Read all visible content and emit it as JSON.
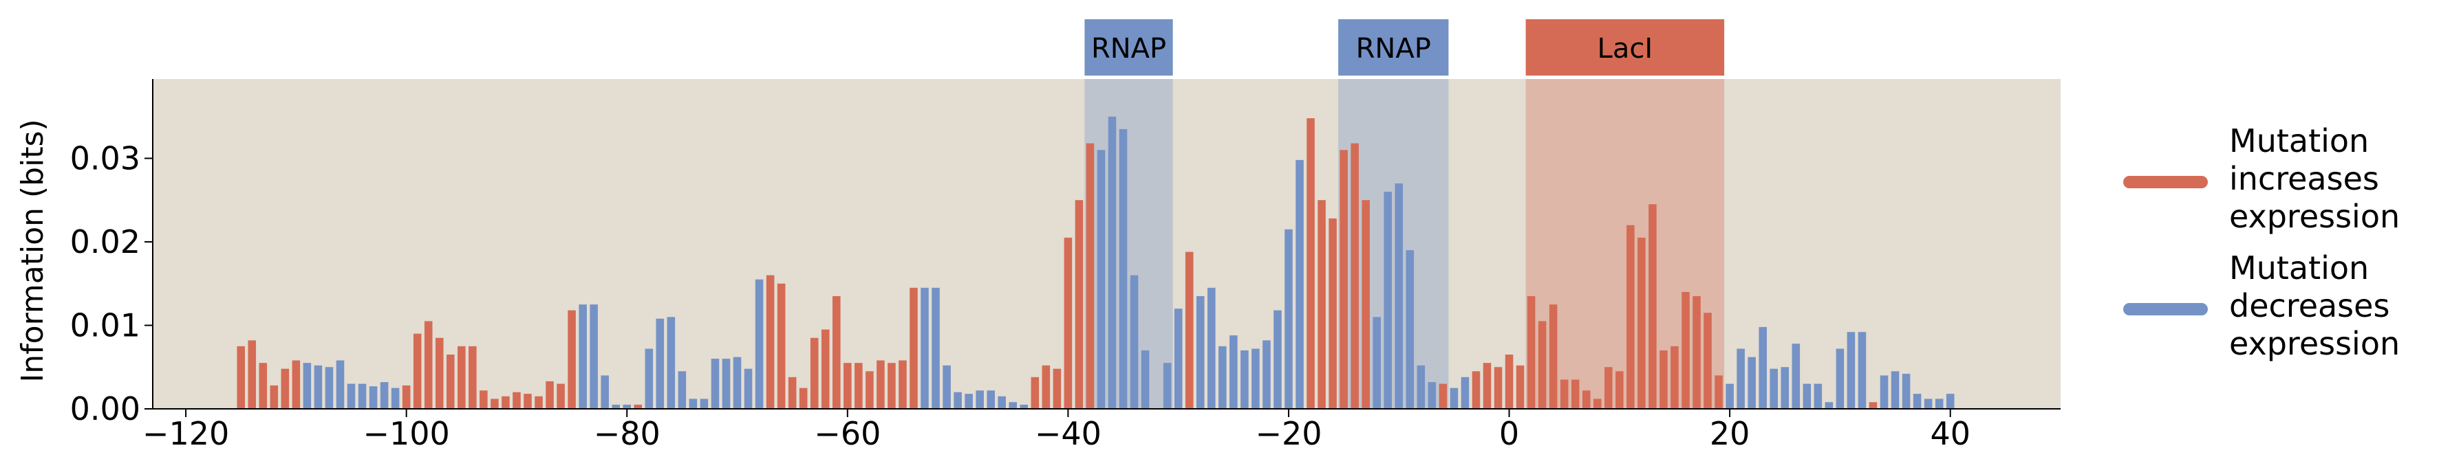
{
  "chart_data": {
    "type": "bar",
    "ylabel": "Information (bits)",
    "xlim": [
      -123,
      50
    ],
    "ylim": [
      0,
      0.0395
    ],
    "xticks": [
      -120,
      -100,
      -80,
      -60,
      -40,
      -20,
      0,
      20,
      40
    ],
    "xtick_labels": [
      "−120",
      "−100",
      "−80",
      "−60",
      "−40",
      "−20",
      "0",
      "20",
      "40"
    ],
    "yticks": [
      0,
      0.01,
      0.02,
      0.03
    ],
    "ytick_labels": [
      "0.00",
      "0.01",
      "0.02",
      "0.03"
    ],
    "x_start": -115,
    "values": [
      0.0075,
      0.0082,
      0.0055,
      0.0028,
      0.0048,
      0.0058,
      0.0055,
      0.0052,
      0.005,
      0.0058,
      0.003,
      0.003,
      0.0027,
      0.0032,
      0.0025,
      0.0028,
      0.009,
      0.0105,
      0.0085,
      0.0065,
      0.0075,
      0.0075,
      0.0022,
      0.0012,
      0.0015,
      0.002,
      0.0018,
      0.0015,
      0.0033,
      0.003,
      0.0118,
      0.0125,
      0.0125,
      0.004,
      0.0005,
      0.0005,
      0.0005,
      0.0072,
      0.0108,
      0.011,
      0.0045,
      0.0012,
      0.0012,
      0.006,
      0.006,
      0.0062,
      0.0048,
      0.0155,
      0.016,
      0.015,
      0.0038,
      0.0025,
      0.0085,
      0.0095,
      0.0135,
      0.0055,
      0.0055,
      0.0045,
      0.0058,
      0.0055,
      0.0058,
      0.0145,
      0.0145,
      0.0145,
      0.0052,
      0.002,
      0.0018,
      0.0022,
      0.0022,
      0.0015,
      0.0008,
      0.0005,
      0.0038,
      0.0052,
      0.0048,
      0.0205,
      0.025,
      0.0318,
      0.031,
      0.035,
      0.0335,
      0.016,
      0.007,
      0.0,
      0.0055,
      0.012,
      0.0188,
      0.0135,
      0.0145,
      0.0075,
      0.0088,
      0.007,
      0.0072,
      0.0082,
      0.0118,
      0.0215,
      0.0298,
      0.0348,
      0.025,
      0.0228,
      0.031,
      0.0318,
      0.025,
      0.011,
      0.026,
      0.027,
      0.019,
      0.0052,
      0.0032,
      0.003,
      0.0025,
      0.0038,
      0.0045,
      0.0055,
      0.005,
      0.0065,
      0.0052,
      0.0135,
      0.0105,
      0.0125,
      0.0035,
      0.0035,
      0.0022,
      0.0012,
      0.005,
      0.0045,
      0.022,
      0.0205,
      0.0245,
      0.007,
      0.0075,
      0.014,
      0.0135,
      0.0115,
      0.004,
      0.003,
      0.0072,
      0.0062,
      0.0098,
      0.0048,
      0.005,
      0.0078,
      0.003,
      0.003,
      0.0008,
      0.0072,
      0.0092,
      0.0092,
      0.0008,
      0.004,
      0.0045,
      0.0042,
      0.0018,
      0.0012,
      0.0012,
      0.0018
    ],
    "increase_positions": [
      -115,
      -114,
      -113,
      -112,
      -111,
      -110,
      -100,
      -99,
      -98,
      -97,
      -96,
      -95,
      -94,
      -93,
      -92,
      -91,
      -90,
      -89,
      -88,
      -87,
      -86,
      -85,
      -79,
      -67,
      -66,
      -65,
      -64,
      -63,
      -62,
      -61,
      -60,
      -59,
      -58,
      -57,
      -56,
      -55,
      -54,
      -43,
      -42,
      -41,
      -40,
      -39,
      -38,
      -29,
      -18,
      -17,
      -16,
      -15,
      -14,
      -13,
      -6,
      -3,
      -2,
      -1,
      0,
      1,
      2,
      3,
      4,
      5,
      6,
      7,
      8,
      9,
      10,
      11,
      12,
      13,
      14,
      15,
      16,
      17,
      18,
      19,
      33,
      43
    ],
    "regions": [
      {
        "label": "RNAP",
        "start": -38.5,
        "end": -30.5,
        "color": "#7492c6"
      },
      {
        "label": "RNAP",
        "start": -15.5,
        "end": -5.5,
        "color": "#7492c6"
      },
      {
        "label": "LacI",
        "start": 1.5,
        "end": 19.5,
        "color": "#d56b54"
      }
    ],
    "legend": [
      {
        "label_lines": [
          "Mutation",
          "increases",
          "expression"
        ],
        "color": "#d56b54"
      },
      {
        "label_lines": [
          "Mutation",
          "decreases",
          "expression"
        ],
        "color": "#7492c6"
      }
    ],
    "colors": {
      "increase": "#d56b54",
      "decrease": "#7492c6",
      "background": "#e3ddd2"
    },
    "legend_position": "right",
    "grid": false
  }
}
